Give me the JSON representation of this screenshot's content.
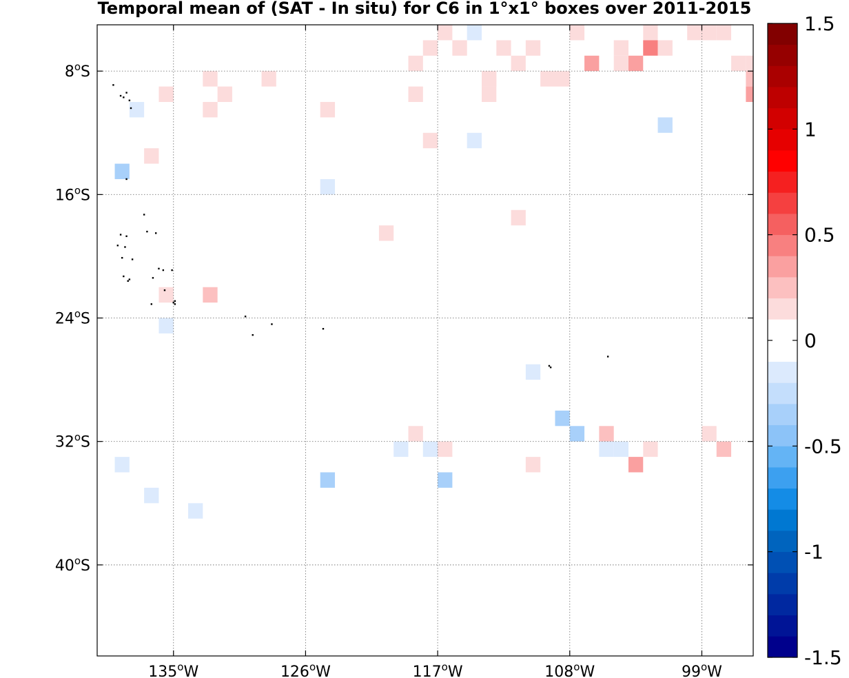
{
  "chart_data": {
    "type": "heatmap",
    "title": "Temporal mean of (SAT - In situ) for C6 in 1°x1° boxes over 2011-2015",
    "xlabel": "",
    "ylabel": "",
    "xlim": [
      -140.2,
      -95.5
    ],
    "ylim": [
      -45.9,
      -5.0
    ],
    "cell_size_deg": 1,
    "x_ticks": [
      {
        "value": -135,
        "label": "135",
        "suffix": "W"
      },
      {
        "value": -126,
        "label": "126",
        "suffix": "W"
      },
      {
        "value": -117,
        "label": "117",
        "suffix": "W"
      },
      {
        "value": -108,
        "label": "108",
        "suffix": "W"
      },
      {
        "value": -99,
        "label": "99",
        "suffix": "W"
      }
    ],
    "y_ticks": [
      {
        "value": -8,
        "label": "8",
        "suffix": "S"
      },
      {
        "value": -16,
        "label": "16",
        "suffix": "S"
      },
      {
        "value": -24,
        "label": "24",
        "suffix": "S"
      },
      {
        "value": -32,
        "label": "32",
        "suffix": "S"
      },
      {
        "value": -40,
        "label": "40",
        "suffix": "S"
      }
    ],
    "grid": true,
    "colorbar": {
      "range": [
        -1.5,
        1.5
      ],
      "ticks": [
        {
          "value": 1.5,
          "label": "1.5"
        },
        {
          "value": 1,
          "label": "1"
        },
        {
          "value": 0.5,
          "label": "0.5"
        },
        {
          "value": 0,
          "label": "0"
        },
        {
          "value": -0.5,
          "label": "-0.5"
        },
        {
          "value": -1,
          "label": "-1"
        },
        {
          "value": -1.5,
          "label": "-1.5"
        }
      ],
      "colors": [
        "#00008c",
        "#001496",
        "#0028a0",
        "#003caa",
        "#0050b4",
        "#0064be",
        "#0078d2",
        "#148ce6",
        "#3ca0f0",
        "#64b4f5",
        "#8cc3f8",
        "#a8d0fa",
        "#c4defc",
        "#dceafd",
        "#ffffff",
        "#ffffff",
        "#fcdcdc",
        "#fcc0c0",
        "#faa0a0",
        "#f88080",
        "#f56060",
        "#f54040",
        "#f52020",
        "#ff0000",
        "#e60000",
        "#d20000",
        "#be0000",
        "#aa0000",
        "#960000",
        "#820000"
      ]
    },
    "cells": [
      {
        "lon": -114.5,
        "lat": -5.5,
        "value": -0.1
      },
      {
        "lon": -116.5,
        "lat": -5.5,
        "value": 0.1
      },
      {
        "lon": -107.5,
        "lat": -5.5,
        "value": 0.1
      },
      {
        "lon": -102.5,
        "lat": -5.5,
        "value": 0.1
      },
      {
        "lon": -99.5,
        "lat": -5.5,
        "value": 0.1
      },
      {
        "lon": -98.5,
        "lat": -5.5,
        "value": 0.1
      },
      {
        "lon": -97.5,
        "lat": -5.5,
        "value": 0.1
      },
      {
        "lon": -112.5,
        "lat": -6.5,
        "value": 0.1
      },
      {
        "lon": -117.5,
        "lat": -6.5,
        "value": 0.1
      },
      {
        "lon": -115.5,
        "lat": -6.5,
        "value": 0.1
      },
      {
        "lon": -110.5,
        "lat": -6.5,
        "value": 0.1
      },
      {
        "lon": -104.5,
        "lat": -6.5,
        "value": 0.1
      },
      {
        "lon": -102.5,
        "lat": -6.5,
        "value": 0.4
      },
      {
        "lon": -101.5,
        "lat": -6.5,
        "value": 0.1
      },
      {
        "lon": -99.5,
        "lat": -6.5,
        "value": -0.05
      },
      {
        "lon": -118.5,
        "lat": -7.5,
        "value": 0.1
      },
      {
        "lon": -111.5,
        "lat": -7.5,
        "value": 0.1
      },
      {
        "lon": -106.5,
        "lat": -7.5,
        "value": 0.3
      },
      {
        "lon": -104.5,
        "lat": -7.5,
        "value": 0.1
      },
      {
        "lon": -103.5,
        "lat": -7.5,
        "value": 0.3
      },
      {
        "lon": -96.5,
        "lat": -7.5,
        "value": 0.1
      },
      {
        "lon": -95.5,
        "lat": -7.5,
        "value": 0.1
      },
      {
        "lon": -132.5,
        "lat": -8.5,
        "value": 0.1
      },
      {
        "lon": -128.5,
        "lat": -8.5,
        "value": 0.1
      },
      {
        "lon": -113.5,
        "lat": -8.5,
        "value": 0.1
      },
      {
        "lon": -113.5,
        "lat": -8.5,
        "value": 0.1
      },
      {
        "lon": -109.5,
        "lat": -8.5,
        "value": 0.1
      },
      {
        "lon": -108.5,
        "lat": -8.5,
        "value": 0.1
      },
      {
        "lon": -95.5,
        "lat": -8.5,
        "value": 0.2
      },
      {
        "lon": -135.5,
        "lat": -9.5,
        "value": 0.1
      },
      {
        "lon": -131.5,
        "lat": -9.5,
        "value": 0.1
      },
      {
        "lon": -118.5,
        "lat": -9.5,
        "value": 0.1
      },
      {
        "lon": -113.5,
        "lat": -9.5,
        "value": 0.1
      },
      {
        "lon": -95.5,
        "lat": -9.5,
        "value": 0.35
      },
      {
        "lon": -137.5,
        "lat": -10.5,
        "value": -0.1
      },
      {
        "lon": -132.5,
        "lat": -10.5,
        "value": 0.1
      },
      {
        "lon": -124.5,
        "lat": -10.5,
        "value": 0.1
      },
      {
        "lon": -101.5,
        "lat": -11.5,
        "value": -0.25
      },
      {
        "lon": -114.5,
        "lat": -12.5,
        "value": -0.1
      },
      {
        "lon": -117.5,
        "lat": -12.5,
        "value": 0.1
      },
      {
        "lon": -136.5,
        "lat": -13.5,
        "value": 0.1
      },
      {
        "lon": -138.5,
        "lat": -14.5,
        "value": -0.3
      },
      {
        "lon": -124.5,
        "lat": -15.5,
        "value": -0.1
      },
      {
        "lon": -111.5,
        "lat": -17.5,
        "value": 0.1
      },
      {
        "lon": -120.5,
        "lat": -18.5,
        "value": 0.15
      },
      {
        "lon": -135.5,
        "lat": -22.5,
        "value": 0.15
      },
      {
        "lon": -132.5,
        "lat": -22.5,
        "value": 0.25
      },
      {
        "lon": -135.5,
        "lat": -24.5,
        "value": -0.15
      },
      {
        "lon": -110.5,
        "lat": -27.5,
        "value": -0.1
      },
      {
        "lon": -108.5,
        "lat": -30.5,
        "value": -0.3
      },
      {
        "lon": -118.5,
        "lat": -31.5,
        "value": 0.1
      },
      {
        "lon": -107.5,
        "lat": -31.5,
        "value": -0.35
      },
      {
        "lon": -105.5,
        "lat": -31.5,
        "value": 0.25
      },
      {
        "lon": -98.5,
        "lat": -31.5,
        "value": 0.1
      },
      {
        "lon": -119.5,
        "lat": -32.5,
        "value": -0.1
      },
      {
        "lon": -117.5,
        "lat": -32.5,
        "value": -0.1
      },
      {
        "lon": -116.5,
        "lat": -32.5,
        "value": 0.1
      },
      {
        "lon": -105.5,
        "lat": -32.5,
        "value": -0.1
      },
      {
        "lon": -104.5,
        "lat": -32.5,
        "value": -0.1
      },
      {
        "lon": -102.5,
        "lat": -32.5,
        "value": 0.1
      },
      {
        "lon": -97.5,
        "lat": -32.5,
        "value": 0.25
      },
      {
        "lon": -138.5,
        "lat": -33.5,
        "value": -0.1
      },
      {
        "lon": -110.5,
        "lat": -33.5,
        "value": 0.1
      },
      {
        "lon": -103.5,
        "lat": -33.5,
        "value": 0.3
      },
      {
        "lon": -124.5,
        "lat": -34.5,
        "value": -0.4
      },
      {
        "lon": -116.5,
        "lat": -34.5,
        "value": -0.3
      },
      {
        "lon": -136.5,
        "lat": -35.5,
        "value": -0.1
      },
      {
        "lon": -133.5,
        "lat": -36.5,
        "value": -0.1
      }
    ],
    "islands": [
      {
        "lon": -139.1,
        "lat": -8.9
      },
      {
        "lon": -138.6,
        "lat": -9.6
      },
      {
        "lon": -138.4,
        "lat": -9.7
      },
      {
        "lon": -138.2,
        "lat": -9.4
      },
      {
        "lon": -138.0,
        "lat": -9.9
      },
      {
        "lon": -137.9,
        "lat": -10.4
      },
      {
        "lon": -138.2,
        "lat": -15.0
      },
      {
        "lon": -137.0,
        "lat": -17.3
      },
      {
        "lon": -138.6,
        "lat": -18.6
      },
      {
        "lon": -138.2,
        "lat": -18.7
      },
      {
        "lon": -138.8,
        "lat": -19.3
      },
      {
        "lon": -138.3,
        "lat": -19.4
      },
      {
        "lon": -136.8,
        "lat": -18.4
      },
      {
        "lon": -136.2,
        "lat": -18.5
      },
      {
        "lon": -138.5,
        "lat": -20.1
      },
      {
        "lon": -137.8,
        "lat": -20.2
      },
      {
        "lon": -136.0,
        "lat": -20.8
      },
      {
        "lon": -135.7,
        "lat": -20.9
      },
      {
        "lon": -135.1,
        "lat": -20.9
      },
      {
        "lon": -138.4,
        "lat": -21.3
      },
      {
        "lon": -138.0,
        "lat": -21.5
      },
      {
        "lon": -138.1,
        "lat": -21.6
      },
      {
        "lon": -136.4,
        "lat": -21.4
      },
      {
        "lon": -135.6,
        "lat": -22.2
      },
      {
        "lon": -136.5,
        "lat": -23.1
      },
      {
        "lon": -135.0,
        "lat": -23.0
      },
      {
        "lon": -134.9,
        "lat": -23.1
      },
      {
        "lon": -134.9,
        "lat": -22.9
      },
      {
        "lon": -130.1,
        "lat": -23.9
      },
      {
        "lon": -128.3,
        "lat": -24.4
      },
      {
        "lon": -129.6,
        "lat": -25.1
      },
      {
        "lon": -124.8,
        "lat": -24.7
      },
      {
        "lon": -109.4,
        "lat": -27.1
      },
      {
        "lon": -109.3,
        "lat": -27.2
      },
      {
        "lon": -105.4,
        "lat": -26.5
      }
    ]
  }
}
